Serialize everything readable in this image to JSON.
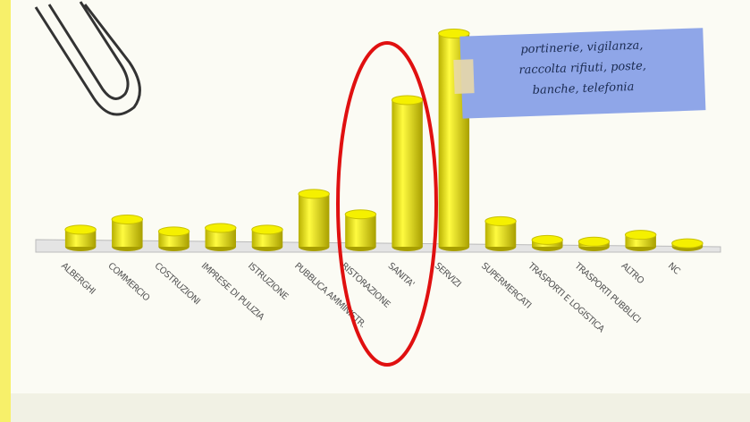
{
  "chart_data": {
    "type": "bar",
    "categories": [
      "ALBERGHI",
      "COMMERCIO",
      "COSTRUZIONI",
      "IMPRESE DI PULIZIA",
      "ISTRUZIONE",
      "PUBBLICA AMMINISTR.",
      "RISTORAZIONE",
      "SANITA'",
      "SERVIZI",
      "SUPERMERCATI",
      "TRASPORTI E LOGISTICA",
      "TRASPORTI PUBBLICI",
      "ALTRO",
      "NC"
    ],
    "values": [
      20,
      32,
      18,
      22,
      20,
      62,
      38,
      172,
      250,
      30,
      8,
      6,
      14,
      4
    ],
    "color": "#f5f000",
    "ylim": [
      0,
      260
    ],
    "note": [
      "portinerie, vigilanza,",
      "raccolta rifiuti, poste,",
      "banche, telefonia"
    ]
  }
}
